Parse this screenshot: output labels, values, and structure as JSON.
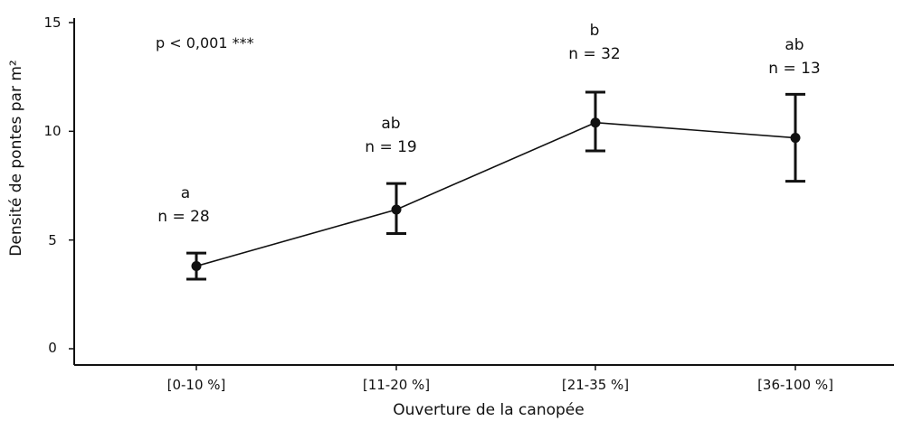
{
  "chart_data": {
    "type": "line",
    "xlabel": "Ouverture de la canopée",
    "ylabel": "Densité de pontes par m²",
    "categories": [
      "[0-10 %]",
      "[11-20 %]",
      "[21-35 %]",
      "[36-100 %]"
    ],
    "values": [
      3.8,
      6.4,
      10.4,
      9.7
    ],
    "error_lower": [
      3.2,
      5.3,
      9.1,
      7.7
    ],
    "error_upper": [
      4.4,
      7.6,
      11.8,
      11.7
    ],
    "groups": [
      "a",
      "ab",
      "b",
      "ab"
    ],
    "n_labels": [
      "n = 28",
      "n = 19",
      "n = 32",
      "n = 13"
    ],
    "ylim": [
      0,
      15
    ],
    "yticks": [
      0,
      5,
      10,
      15
    ],
    "annotation": "p < 0,001 ***",
    "grid": false,
    "line_color": "#111111"
  }
}
